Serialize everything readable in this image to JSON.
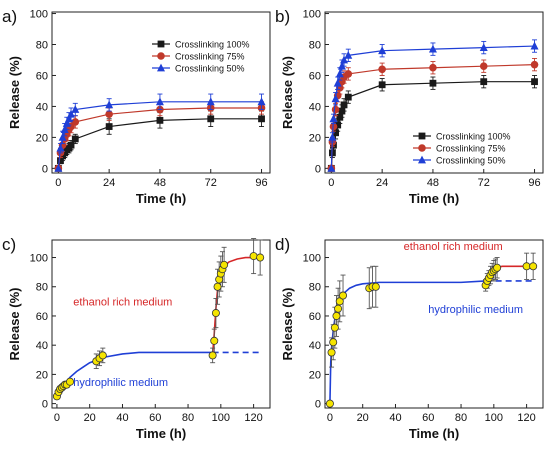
{
  "chart_data": [
    {
      "panel_label": "a)",
      "type": "line",
      "xlabel": "Time (h)",
      "ylabel": "Release (%)",
      "xlim": [
        -3,
        100
      ],
      "ylim": [
        -3,
        101
      ],
      "xticks": [
        0,
        24,
        48,
        72,
        96
      ],
      "yticks": [
        0,
        20,
        40,
        60,
        80,
        100
      ],
      "legend_position": "upper-right",
      "series": [
        {
          "name": "Crosslinking 100%",
          "color": "#1a1a1a",
          "marker": "square",
          "x": [
            0,
            1,
            2,
            3,
            4,
            5,
            6,
            8,
            24,
            48,
            72,
            96
          ],
          "y": [
            0,
            5,
            8,
            10,
            12,
            13,
            15,
            19,
            27,
            31,
            32,
            32
          ],
          "err": [
            0,
            2,
            3,
            3,
            3,
            3,
            3,
            3,
            5,
            5,
            5,
            5
          ]
        },
        {
          "name": "Crosslinking 75%",
          "color": "#c0392b",
          "marker": "circle",
          "x": [
            0,
            1,
            2,
            3,
            4,
            5,
            6,
            8,
            24,
            48,
            72,
            96
          ],
          "y": [
            0,
            10,
            15,
            19,
            22,
            25,
            27,
            30,
            35,
            38,
            39,
            39
          ],
          "err": [
            0,
            3,
            4,
            4,
            4,
            4,
            4,
            4,
            4,
            4,
            4,
            4
          ]
        },
        {
          "name": "Crosslinking 50%",
          "color": "#1f3fd6",
          "marker": "triangle",
          "x": [
            0,
            1,
            2,
            3,
            4,
            5,
            6,
            8,
            24,
            48,
            72,
            96
          ],
          "y": [
            0,
            13,
            20,
            25,
            29,
            32,
            35,
            38,
            41,
            43,
            43,
            43
          ],
          "err": [
            0,
            3,
            4,
            4,
            4,
            4,
            4,
            4,
            4,
            5,
            5,
            5
          ]
        }
      ]
    },
    {
      "panel_label": "b)",
      "type": "line",
      "xlabel": "Time (h)",
      "ylabel": "Release (%)",
      "xlim": [
        -3,
        100
      ],
      "ylim": [
        -3,
        101
      ],
      "xticks": [
        0,
        24,
        48,
        72,
        96
      ],
      "yticks": [
        0,
        20,
        40,
        60,
        80,
        100
      ],
      "legend_position": "lower-right",
      "series": [
        {
          "name": "Crosslinking 100%",
          "color": "#1a1a1a",
          "marker": "square",
          "x": [
            0,
            0.5,
            1,
            2,
            3,
            4,
            5,
            6,
            8,
            24,
            48,
            72,
            96
          ],
          "y": [
            0,
            10,
            15,
            23,
            28,
            33,
            37,
            41,
            46,
            54,
            55,
            56,
            56
          ],
          "err": [
            0,
            3,
            3,
            4,
            4,
            4,
            4,
            4,
            4,
            4,
            4,
            4,
            4
          ]
        },
        {
          "name": "Crosslinking 75%",
          "color": "#c0392b",
          "marker": "circle",
          "x": [
            0,
            0.5,
            1,
            2,
            3,
            4,
            5,
            6,
            8,
            24,
            48,
            72,
            96
          ],
          "y": [
            0,
            17,
            27,
            38,
            47,
            52,
            56,
            59,
            61,
            64,
            65,
            66,
            67
          ],
          "err": [
            0,
            3,
            3,
            4,
            4,
            4,
            4,
            4,
            4,
            4,
            4,
            4,
            4
          ]
        },
        {
          "name": "Crosslinking 50%",
          "color": "#1f3fd6",
          "marker": "triangle",
          "x": [
            0,
            0.5,
            1,
            2,
            3,
            4,
            5,
            6,
            8,
            24,
            48,
            72,
            96
          ],
          "y": [
            0,
            20,
            32,
            45,
            55,
            61,
            66,
            70,
            73,
            76,
            77,
            78,
            79
          ],
          "err": [
            0,
            3,
            3,
            4,
            4,
            4,
            4,
            4,
            4,
            4,
            4,
            4,
            4
          ]
        }
      ]
    },
    {
      "panel_label": "c)",
      "type": "scatter",
      "xlabel": "Time (h)",
      "ylabel": "Release (%)",
      "xlim": [
        -3,
        130
      ],
      "ylim": [
        -3,
        112
      ],
      "xticks": [
        0,
        20,
        40,
        60,
        80,
        100,
        120
      ],
      "yticks": [
        0,
        20,
        40,
        60,
        80,
        100
      ],
      "annotations": [
        {
          "text": "ethanol rich medium",
          "color": "#d62728",
          "x": 10,
          "y": 67
        },
        {
          "text": "hydrophilic medium",
          "color": "#1f3fd6",
          "x": 10,
          "y": 12
        }
      ],
      "points": {
        "marker_color": "#f5e400",
        "x": [
          0,
          1,
          2,
          3,
          4,
          5,
          6,
          8,
          24,
          26,
          28,
          95,
          96,
          97,
          98,
          99,
          100,
          101,
          102,
          120,
          124
        ],
        "y": [
          5,
          8,
          10,
          11,
          12,
          13,
          13,
          15,
          29,
          31,
          33,
          33,
          43,
          62,
          80,
          85,
          89,
          92,
          95,
          101,
          100
        ],
        "err": [
          2,
          2,
          2,
          2,
          2,
          2,
          2,
          2,
          5,
          5,
          5,
          5,
          8,
          10,
          12,
          12,
          12,
          12,
          12,
          12,
          12
        ]
      },
      "fits": [
        {
          "name": "hydrophilic fit",
          "color": "#1f3fd6",
          "style": "solid",
          "x": [
            0,
            2,
            5,
            8,
            12,
            16,
            20,
            25,
            30,
            40,
            50,
            60,
            70,
            80,
            90,
            95
          ],
          "y": [
            4,
            9,
            14,
            18,
            22,
            25,
            28,
            30,
            32,
            34,
            35,
            35,
            35,
            35,
            35,
            35
          ]
        },
        {
          "name": "hydrophilic extrapolation",
          "color": "#1f3fd6",
          "style": "dashed",
          "x": [
            95,
            100,
            110,
            120,
            125
          ],
          "y": [
            35,
            35,
            35,
            35,
            35
          ]
        },
        {
          "name": "ethanol fit",
          "color": "#d62728",
          "style": "solid",
          "x": [
            95,
            96,
            97,
            98,
            99,
            100,
            102,
            105,
            110,
            115,
            120,
            125
          ],
          "y": [
            34,
            48,
            65,
            78,
            86,
            90,
            94,
            97,
            99,
            100,
            100,
            100
          ]
        }
      ]
    },
    {
      "panel_label": "d)",
      "type": "scatter",
      "xlabel": "Time (h)",
      "ylabel": "Release (%)",
      "xlim": [
        -3,
        130
      ],
      "ylim": [
        -3,
        112
      ],
      "xticks": [
        0,
        20,
        40,
        60,
        80,
        100,
        120
      ],
      "yticks": [
        0,
        20,
        40,
        60,
        80,
        100
      ],
      "annotations": [
        {
          "text": "ethanol rich medium",
          "color": "#d62728",
          "x": 45,
          "y": 105
        },
        {
          "text": "hydrophilic medium",
          "color": "#1f3fd6",
          "x": 60,
          "y": 62
        }
      ],
      "points": {
        "marker_color": "#f5e400",
        "x": [
          0,
          1,
          2,
          3,
          4,
          5,
          6,
          8,
          24,
          26,
          28,
          95,
          96,
          97,
          98,
          99,
          100,
          101,
          102,
          120,
          124
        ],
        "y": [
          0,
          35,
          42,
          52,
          60,
          65,
          70,
          74,
          79,
          80,
          80,
          81,
          84,
          86,
          88,
          90,
          91,
          92,
          93,
          94,
          94
        ],
        "err": [
          0,
          10,
          12,
          14,
          14,
          14,
          14,
          14,
          14,
          14,
          14,
          4,
          5,
          5,
          6,
          6,
          7,
          7,
          7,
          9,
          9
        ]
      },
      "fits": [
        {
          "name": "hydrophilic fit",
          "color": "#1f3fd6",
          "style": "solid",
          "x": [
            0,
            0.5,
            1,
            2,
            3,
            4,
            6,
            8,
            12,
            16,
            20,
            30,
            40,
            60,
            80,
            95
          ],
          "y": [
            0,
            28,
            38,
            50,
            58,
            64,
            71,
            75,
            79,
            81,
            82,
            83,
            83,
            83,
            83,
            84
          ]
        },
        {
          "name": "hydrophilic extrapolation",
          "color": "#1f3fd6",
          "style": "dashed",
          "x": [
            95,
            105,
            115,
            125
          ],
          "y": [
            84,
            84,
            84,
            84
          ]
        },
        {
          "name": "ethanol fit",
          "color": "#d62728",
          "style": "solid",
          "x": [
            95,
            96,
            97,
            98,
            100,
            102,
            105,
            110,
            115,
            120,
            125
          ],
          "y": [
            82,
            86,
            88,
            90,
            92,
            93,
            94,
            94,
            94,
            94,
            94
          ]
        }
      ]
    }
  ]
}
